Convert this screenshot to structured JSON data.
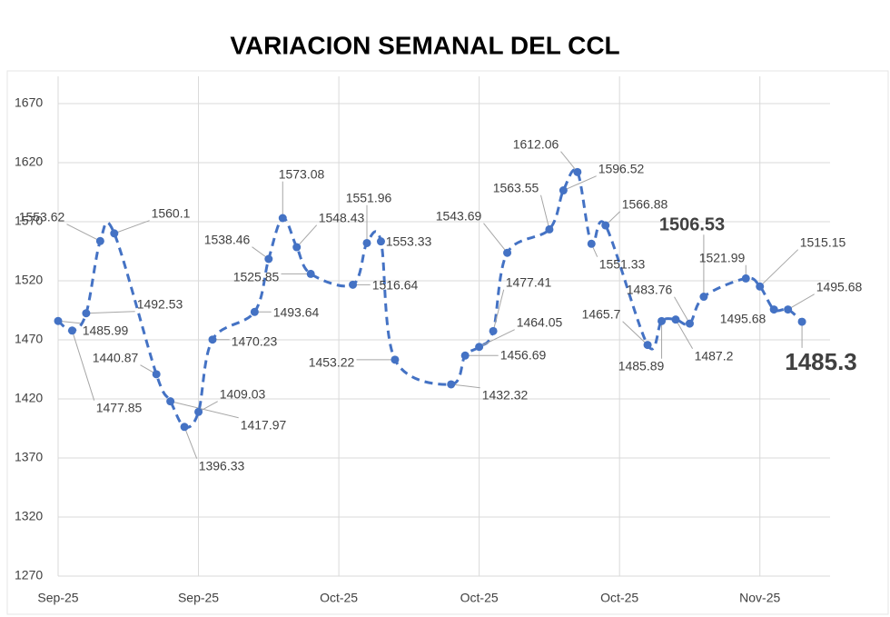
{
  "chart_data": {
    "type": "line",
    "title": "VARIACION SEMANAL DEL CCL",
    "color": "#4472c4",
    "dashed": true,
    "grid": true,
    "x": [
      0,
      1,
      2,
      3,
      4,
      7,
      8,
      9,
      10,
      11,
      14,
      15,
      16,
      17,
      18,
      21,
      22,
      23,
      24,
      28,
      29,
      30,
      31,
      32,
      35,
      36,
      37,
      38,
      39,
      42,
      43,
      44,
      45,
      46,
      49,
      50,
      51,
      52,
      53
    ],
    "values": [
      1485.99,
      1477.85,
      1492.53,
      1553.62,
      1560.1,
      1440.87,
      1417.97,
      1396.33,
      1409.03,
      1470.23,
      1493.64,
      1538.46,
      1573.08,
      1548.43,
      1525.85,
      1516.64,
      1551.96,
      1553.33,
      1453.22,
      1432.32,
      1456.69,
      1464.05,
      1477.41,
      1543.69,
      1563.55,
      1596.52,
      1612.06,
      1551.33,
      1566.88,
      1465.7,
      1485.89,
      1487.2,
      1483.76,
      1506.53,
      1521.99,
      1515.15,
      1495.68,
      1495.68,
      1485.3
    ],
    "xlim": [
      0,
      55
    ],
    "xticks": [
      {
        "value": 0,
        "label": "Sep-25"
      },
      {
        "value": 10,
        "label": "Sep-25"
      },
      {
        "value": 20,
        "label": "Oct-25"
      },
      {
        "value": 30,
        "label": "Oct-25"
      },
      {
        "value": 40,
        "label": "Oct-25"
      },
      {
        "value": 50,
        "label": "Nov-25"
      }
    ],
    "ylim": [
      1270,
      1670
    ],
    "yticks": [
      1270,
      1320,
      1370,
      1420,
      1470,
      1520,
      1570,
      1620,
      1670
    ]
  }
}
